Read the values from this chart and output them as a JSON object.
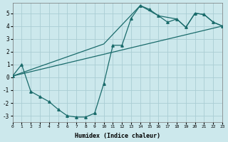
{
  "xlabel": "Humidex (Indice chaleur)",
  "bg_color": "#cce8ec",
  "grid_color": "#aacdd4",
  "line_color": "#1a6b6b",
  "xlim": [
    0,
    23
  ],
  "ylim": [
    -3.5,
    5.8
  ],
  "xticks": [
    0,
    1,
    2,
    3,
    4,
    5,
    6,
    7,
    8,
    9,
    10,
    11,
    12,
    13,
    14,
    15,
    16,
    17,
    18,
    19,
    20,
    21,
    22,
    23
  ],
  "yticks": [
    -3,
    -2,
    -1,
    0,
    1,
    2,
    3,
    4,
    5
  ],
  "line1_x": [
    0,
    1,
    2,
    3,
    4,
    5,
    6,
    7,
    8,
    9,
    10,
    11,
    12,
    13,
    14,
    15,
    16,
    17,
    18,
    19,
    20,
    21,
    22,
    23
  ],
  "line1_y": [
    0.1,
    1.0,
    -1.1,
    -1.5,
    -1.9,
    -2.5,
    -3.0,
    -3.1,
    -3.1,
    -2.8,
    -0.5,
    2.5,
    2.5,
    4.6,
    5.6,
    5.3,
    4.8,
    4.3,
    4.55,
    3.9,
    5.0,
    4.9,
    4.3,
    4.0
  ],
  "line2_x": [
    0,
    23
  ],
  "line2_y": [
    0.1,
    4.0
  ],
  "line3_x": [
    0,
    10,
    14,
    16,
    18,
    19,
    20,
    21,
    22,
    23
  ],
  "line3_y": [
    0.1,
    2.6,
    5.6,
    4.8,
    4.55,
    3.9,
    5.0,
    4.9,
    4.3,
    4.0
  ]
}
